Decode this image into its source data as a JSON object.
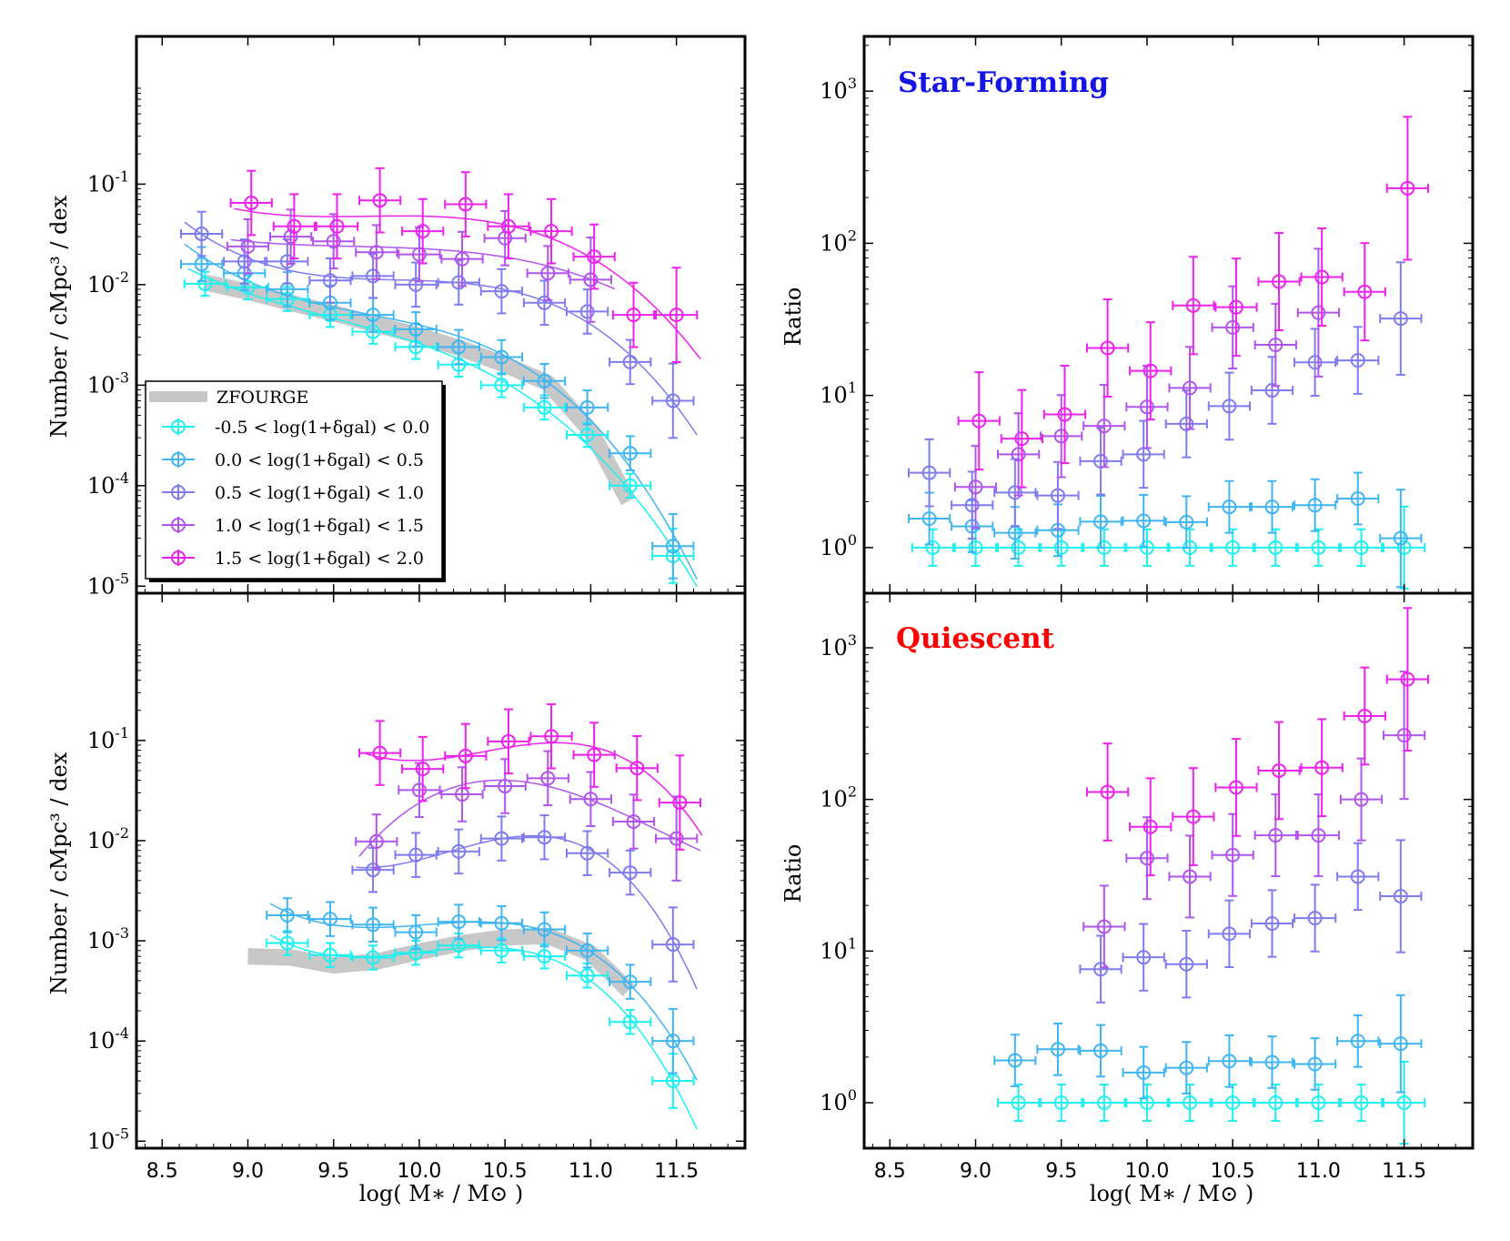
{
  "figure": {
    "xlabel": "log( M∗ / M⊙ )",
    "ylabel_smf": "Number / cMpc³ / dex",
    "ylabel_ratio": "Ratio"
  },
  "legend": {
    "zfourge": "ZFOURGE",
    "bins": [
      "-0.5 < log(1+δgal) < 0.0",
      "0.0 < log(1+δgal) < 0.5",
      "0.5 < log(1+δgal) < 1.0",
      "1.0 < log(1+δgal) < 1.5",
      "1.5 < log(1+δgal) < 2.0"
    ]
  },
  "colors": {
    "bins": [
      "#1ef0f0",
      "#3fb5f2",
      "#7f7cf0",
      "#b155ee",
      "#ee22ee"
    ],
    "band": "#c8c8c8",
    "starforming": "#1414e6",
    "quiescent": "#ff0000"
  },
  "chart_data": [
    {
      "id": "sf-smf",
      "type": "scatter",
      "title": "",
      "xlabel": "log( M∗ / M⊙ )",
      "ylabel": "Number / cMpc³ / dex",
      "xlim": [
        8.35,
        11.9
      ],
      "ylim_log10": [
        -5.07,
        0.47
      ],
      "x_ticks": [
        "8.5",
        "9.0",
        "9.5",
        "10.0",
        "10.5",
        "11.0",
        "11.5"
      ],
      "y_ticks": [
        "10^-5",
        "10^-4",
        "10^-3",
        "10^-2",
        "10^-1"
      ],
      "series": [
        {
          "name": "-0.5 < log(1+δgal) < 0.0",
          "x": [
            8.75,
            9.0,
            9.23,
            9.48,
            9.73,
            9.98,
            10.23,
            10.48,
            10.73,
            10.98,
            11.23,
            11.48
          ],
          "y": [
            0.0102,
            0.0094,
            0.0072,
            0.005,
            0.0034,
            0.0024,
            0.0016,
            0.001,
            0.0006,
            0.00032,
            0.0001,
            2e-05
          ]
        },
        {
          "name": "0.0 < log(1+δgal) < 0.5",
          "x": [
            8.73,
            8.98,
            9.23,
            9.48,
            9.73,
            9.98,
            10.23,
            10.48,
            10.73,
            10.98,
            11.23,
            11.48
          ],
          "y": [
            0.016,
            0.013,
            0.009,
            0.0066,
            0.005,
            0.0036,
            0.0024,
            0.0019,
            0.0011,
            0.0006,
            0.00021,
            2.5e-05
          ]
        },
        {
          "name": "0.5 < log(1+δgal) < 1.0",
          "x": [
            8.73,
            8.98,
            9.23,
            9.48,
            9.73,
            9.98,
            10.23,
            10.48,
            10.73,
            10.98,
            11.23,
            11.48
          ],
          "y": [
            0.032,
            0.017,
            0.017,
            0.011,
            0.0122,
            0.01,
            0.0105,
            0.0086,
            0.0066,
            0.0054,
            0.0017,
            0.0007
          ]
        },
        {
          "name": "1.0 < log(1+δgal) < 1.5",
          "x": [
            9.0,
            9.25,
            9.5,
            9.75,
            10.0,
            10.25,
            10.5,
            10.75,
            11.0
          ],
          "y": [
            0.024,
            0.03,
            0.027,
            0.021,
            0.02,
            0.018,
            0.029,
            0.013,
            0.0112
          ]
        },
        {
          "name": "1.5 < log(1+δgal) < 2.0",
          "x": [
            9.02,
            9.27,
            9.52,
            9.77,
            10.02,
            10.27,
            10.52,
            10.77,
            11.02,
            11.25,
            11.5
          ],
          "y": [
            0.065,
            0.038,
            0.038,
            0.069,
            0.034,
            0.063,
            0.038,
            0.034,
            0.019,
            0.005,
            0.005
          ]
        }
      ]
    },
    {
      "id": "sf-ratio",
      "type": "scatter",
      "title": "Star-Forming",
      "xlabel": "log( M∗ / M⊙ )",
      "ylabel": "Ratio",
      "xlim": [
        8.35,
        11.9
      ],
      "ylim_log10": [
        -0.3,
        3.36
      ],
      "x_ticks": [
        "8.5",
        "9.0",
        "9.5",
        "10.0",
        "10.5",
        "11.0",
        "11.5"
      ],
      "y_ticks": [
        "10^0",
        "10^1",
        "10^2",
        "10^3"
      ],
      "series": [
        {
          "name": "-0.5 < log(1+δgal) < 0.0",
          "x": [
            8.75,
            9.0,
            9.25,
            9.5,
            9.75,
            10.0,
            10.25,
            10.5,
            10.75,
            11.0,
            11.25,
            11.5
          ],
          "y": [
            1,
            1,
            1,
            1,
            1,
            1,
            1,
            1,
            1,
            1,
            1,
            1
          ]
        },
        {
          "name": "0.0 < log(1+δgal) < 0.5",
          "x": [
            8.73,
            8.98,
            9.23,
            9.48,
            9.73,
            9.98,
            10.23,
            10.48,
            10.73,
            10.98,
            11.23,
            11.48
          ],
          "y": [
            1.55,
            1.38,
            1.25,
            1.3,
            1.48,
            1.5,
            1.47,
            1.85,
            1.85,
            1.9,
            2.1,
            1.15
          ]
        },
        {
          "name": "0.5 < log(1+δgal) < 1.0",
          "x": [
            8.73,
            8.98,
            9.23,
            9.48,
            9.73,
            9.98,
            10.23,
            10.48,
            10.73,
            10.98,
            11.23,
            11.48
          ],
          "y": [
            3.1,
            1.9,
            2.3,
            2.2,
            3.7,
            4.1,
            6.5,
            8.5,
            10.8,
            16.5,
            17,
            32
          ]
        },
        {
          "name": "1.0 < log(1+δgal) < 1.5",
          "x": [
            9.0,
            9.25,
            9.5,
            9.75,
            10.0,
            10.25,
            10.5,
            10.75,
            11.0
          ],
          "y": [
            2.5,
            4.1,
            5.4,
            6.3,
            8.4,
            11.2,
            28,
            21.5,
            35
          ]
        },
        {
          "name": "1.5 < log(1+δgal) < 2.0",
          "x": [
            9.02,
            9.27,
            9.52,
            9.77,
            10.02,
            10.27,
            10.52,
            10.77,
            11.02,
            11.27,
            11.52
          ],
          "y": [
            6.8,
            5.2,
            7.5,
            20.5,
            14.5,
            39,
            38,
            56,
            60,
            48,
            230
          ]
        }
      ]
    },
    {
      "id": "q-smf",
      "type": "scatter",
      "title": "",
      "xlabel": "log( M∗ / M⊙ )",
      "ylabel": "Number / cMpc³ / dex",
      "xlim": [
        8.35,
        11.9
      ],
      "ylim_log10": [
        -5.07,
        0.47
      ],
      "x_ticks": [
        "8.5",
        "9.0",
        "9.5",
        "10.0",
        "10.5",
        "11.0",
        "11.5"
      ],
      "y_ticks": [
        "10^-5",
        "10^-4",
        "10^-3",
        "10^-2",
        "10^-1"
      ],
      "series": [
        {
          "name": "-0.5 < log(1+δgal) < 0.0",
          "x": [
            9.23,
            9.48,
            9.73,
            9.98,
            10.23,
            10.48,
            10.73,
            10.98,
            11.23,
            11.48
          ],
          "y": [
            0.00095,
            0.00072,
            0.00068,
            0.00076,
            0.0009,
            0.0008,
            0.0007,
            0.00045,
            0.000155,
            4e-05
          ]
        },
        {
          "name": "0.0 < log(1+δgal) < 0.5",
          "x": [
            9.23,
            9.48,
            9.73,
            9.98,
            10.23,
            10.48,
            10.73,
            10.98,
            11.23,
            11.48
          ],
          "y": [
            0.0018,
            0.00165,
            0.00145,
            0.00122,
            0.00155,
            0.0015,
            0.0013,
            0.0008,
            0.00039,
            0.0001
          ]
        },
        {
          "name": "0.5 < log(1+δgal) < 1.0",
          "x": [
            9.73,
            9.98,
            10.23,
            10.48,
            10.73,
            10.98,
            11.23,
            11.48
          ],
          "y": [
            0.0051,
            0.0072,
            0.0078,
            0.0105,
            0.0108,
            0.0075,
            0.0048,
            0.00092
          ]
        },
        {
          "name": "1.0 < log(1+δgal) < 1.5",
          "x": [
            9.75,
            10.0,
            10.25,
            10.5,
            10.75,
            11.0,
            11.25,
            11.5
          ],
          "y": [
            0.0098,
            0.032,
            0.029,
            0.035,
            0.042,
            0.026,
            0.0155,
            0.0105
          ]
        },
        {
          "name": "1.5 < log(1+δgal) < 2.0",
          "x": [
            9.77,
            10.02,
            10.27,
            10.52,
            10.77,
            11.02,
            11.27,
            11.52
          ],
          "y": [
            0.075,
            0.052,
            0.07,
            0.098,
            0.11,
            0.072,
            0.053,
            0.024
          ]
        }
      ]
    },
    {
      "id": "q-ratio",
      "type": "scatter",
      "title": "Quiescent",
      "xlabel": "log( M∗ / M⊙ )",
      "ylabel": "Ratio",
      "xlim": [
        8.35,
        11.9
      ],
      "ylim_log10": [
        -0.3,
        3.36
      ],
      "x_ticks": [
        "8.5",
        "9.0",
        "9.5",
        "10.0",
        "10.5",
        "11.0",
        "11.5"
      ],
      "y_ticks": [
        "10^0",
        "10^1",
        "10^2",
        "10^3"
      ],
      "series": [
        {
          "name": "-0.5 < log(1+δgal) < 0.0",
          "x": [
            9.25,
            9.5,
            9.75,
            10.0,
            10.25,
            10.5,
            10.75,
            11.0,
            11.25,
            11.5
          ],
          "y": [
            1,
            1,
            1,
            1,
            1,
            1,
            1,
            1,
            1,
            1
          ]
        },
        {
          "name": "0.0 < log(1+δgal) < 0.5",
          "x": [
            9.23,
            9.48,
            9.73,
            9.98,
            10.23,
            10.48,
            10.73,
            10.98,
            11.23,
            11.48
          ],
          "y": [
            1.9,
            2.25,
            2.2,
            1.58,
            1.7,
            1.88,
            1.85,
            1.8,
            2.55,
            2.45
          ]
        },
        {
          "name": "0.5 < log(1+δgal) < 1.0",
          "x": [
            9.73,
            9.98,
            10.23,
            10.48,
            10.73,
            10.98,
            11.23,
            11.48
          ],
          "y": [
            7.6,
            9.1,
            8.2,
            13,
            15.2,
            16.5,
            31,
            23
          ]
        },
        {
          "name": "1.0 < log(1+δgal) < 1.5",
          "x": [
            9.75,
            10.0,
            10.25,
            10.5,
            10.75,
            11.0,
            11.25,
            11.5
          ],
          "y": [
            14.5,
            41,
            31,
            43,
            58,
            58,
            100,
            265
          ]
        },
        {
          "name": "1.5 < log(1+δgal) < 2.0",
          "x": [
            9.77,
            10.02,
            10.27,
            10.52,
            10.77,
            11.02,
            11.27,
            11.52
          ],
          "y": [
            112,
            66,
            77,
            120,
            155,
            162,
            355,
            620
          ]
        }
      ]
    }
  ]
}
